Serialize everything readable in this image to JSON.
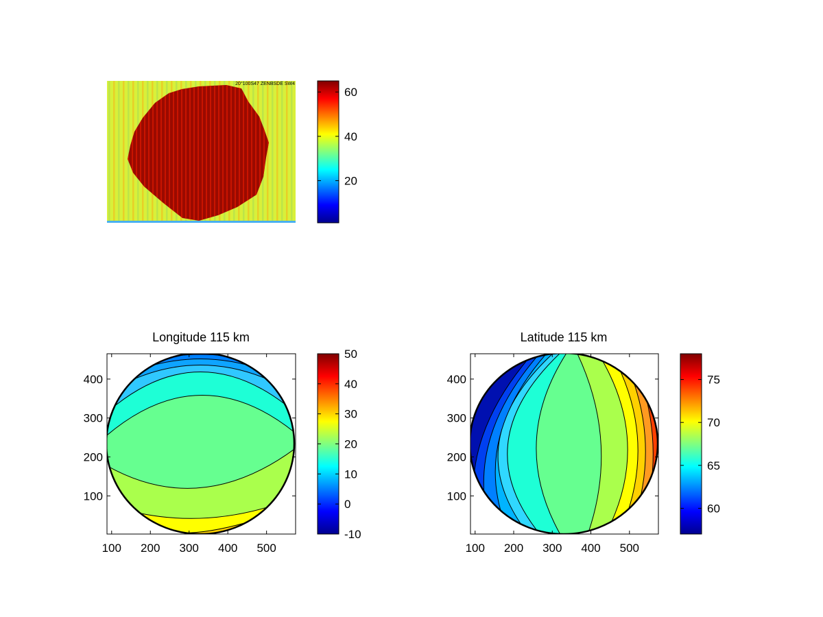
{
  "figure": {
    "background": "#ffffff",
    "colormap": "jet"
  },
  "chart_data": [
    {
      "id": "raw-image",
      "type": "heatmap",
      "title": "",
      "xlabel": "",
      "ylabel": "",
      "axes_visible": false,
      "image_text": "20°100S47 ZENBSDE SW4",
      "colorbar": {
        "limits": [
          1,
          65
        ],
        "ticks": [
          20,
          40,
          60
        ],
        "colormap": "jet"
      },
      "regions": [
        {
          "name": "",
          "value": 42,
          "color": "#d8f03a"
        },
        {
          "name": "",
          "value": 62,
          "color": "#9a0a00"
        }
      ]
    },
    {
      "id": "longitude-map",
      "type": "heatmap",
      "subtype": "filled-contour",
      "title": "Longitude 115 km",
      "xlabel": "",
      "ylabel": "",
      "xlim": [
        88,
        575
      ],
      "ylim": [
        2,
        465
      ],
      "xticks": [
        100,
        200,
        300,
        400,
        500
      ],
      "yticks": [
        100,
        200,
        300,
        400
      ],
      "colorbar": {
        "limits": [
          -10,
          50
        ],
        "ticks": [
          -10,
          0,
          10,
          20,
          30,
          40,
          50
        ],
        "colormap": "jet"
      },
      "disk": {
        "cx": 331,
        "cy": 233,
        "r": 242
      },
      "contour_levels": [
        11,
        15,
        19,
        25,
        28,
        32
      ],
      "grid": false
    },
    {
      "id": "latitude-map",
      "type": "heatmap",
      "subtype": "filled-contour",
      "title": "Latitude 115 km",
      "xlabel": "",
      "ylabel": "",
      "xlim": [
        88,
        575
      ],
      "ylim": [
        2,
        465
      ],
      "xticks": [
        100,
        200,
        300,
        400,
        500
      ],
      "yticks": [
        100,
        200,
        300,
        400
      ],
      "colorbar": {
        "limits": [
          57,
          78
        ],
        "ticks": [
          60,
          65,
          70,
          75
        ],
        "colormap": "jet"
      },
      "disk": {
        "cx": 331,
        "cy": 233,
        "r": 242
      },
      "contour_levels": [
        60,
        61,
        62,
        63,
        64,
        66,
        69,
        71,
        72.5,
        74,
        75.5
      ],
      "grid": false
    }
  ]
}
